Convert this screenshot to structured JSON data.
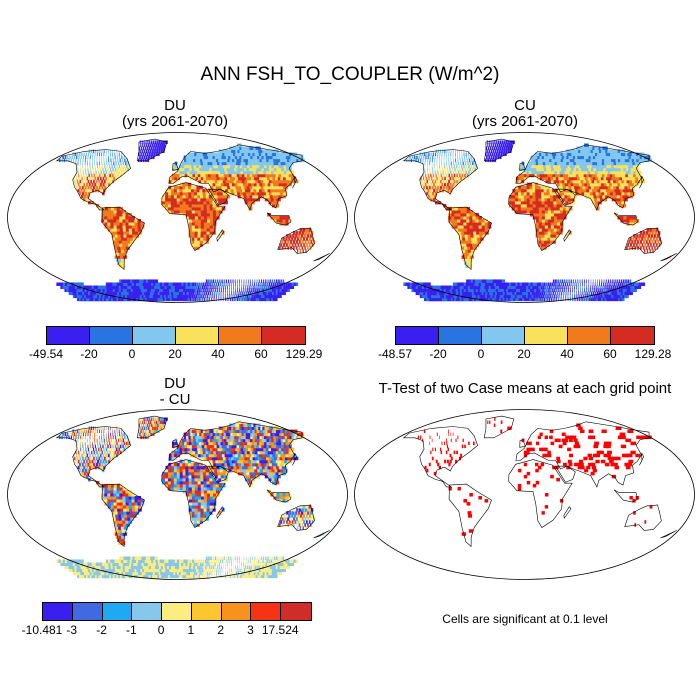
{
  "main_title": "ANN FSH_TO_COUPLER (W/m^2)",
  "panels": [
    {
      "title_line1": "DU",
      "title_line2": "(yrs 2061-2070)"
    },
    {
      "title_line1": "CU",
      "title_line2": "(yrs 2061-2070)"
    },
    {
      "title_line1": "DU",
      "title_line2": "- CU"
    },
    {
      "title_line1": "T-Test of two Case means at each grid point",
      "title_line2": ""
    }
  ],
  "colorbar_top_left": {
    "labels": [
      "-49.54",
      "-20",
      "0",
      "20",
      "40",
      "60",
      "129.29"
    ],
    "colors": [
      "#3a1ff0",
      "#2a74e2",
      "#82c8ee",
      "#fae15c",
      "#f07a1c",
      "#d42c23"
    ]
  },
  "colorbar_top_right": {
    "labels": [
      "-48.57",
      "-20",
      "0",
      "20",
      "40",
      "60",
      "129.28"
    ],
    "colors": [
      "#3a1ff0",
      "#2a74e2",
      "#82c8ee",
      "#fae15c",
      "#f07a1c",
      "#d42c23"
    ]
  },
  "colorbar_diff": {
    "labels": [
      "-10.481",
      "-3",
      "-2",
      "-1",
      "0",
      "1",
      "2",
      "3",
      "17.524"
    ],
    "colors": [
      "#3a1ff0",
      "#4169e1",
      "#1fa9f3",
      "#88c7ec",
      "#fbed80",
      "#fcc630",
      "#f8921e",
      "#f63312",
      "#d02d2a"
    ]
  },
  "significance_note": "Cells are significant at 0.1 level",
  "colors": {
    "ocean": "#ffffff",
    "outline": "#000000",
    "significant": "#ff0000"
  }
}
